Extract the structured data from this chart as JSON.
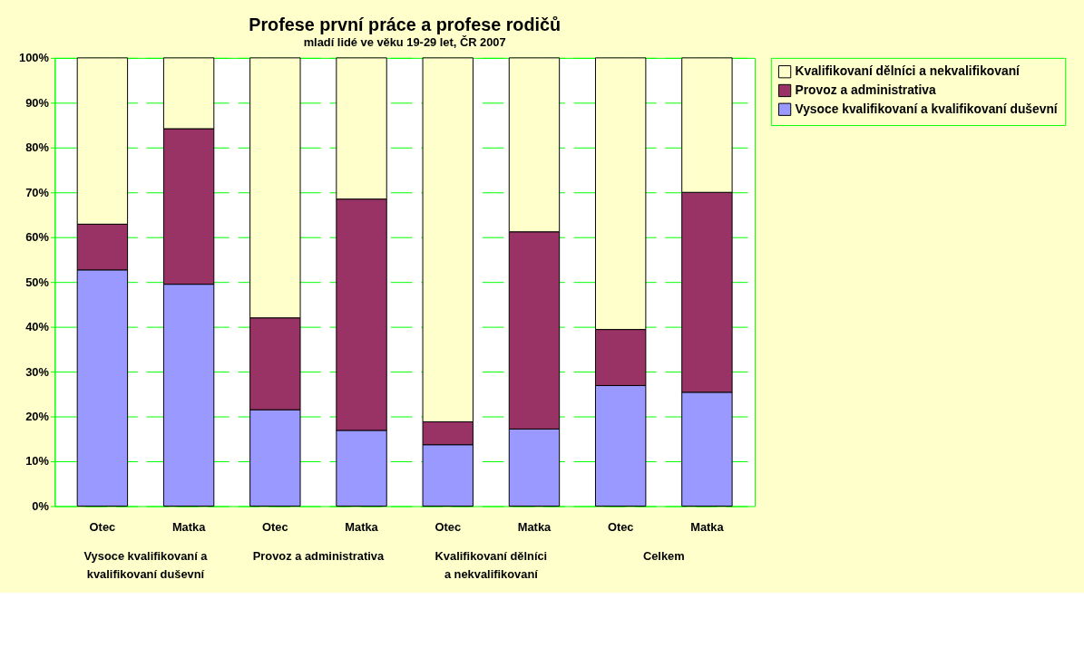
{
  "chart_data": {
    "type": "bar",
    "stacked": true,
    "title": "Profese první práce a profese rodičů",
    "subtitle": "mladí lidé ve věku 19-29 let, ČR 2007",
    "categories": [
      "Otec",
      "Matka",
      "Otec",
      "Matka",
      "Otec",
      "Matka",
      "Otec",
      "Matka"
    ],
    "series": [
      {
        "name": "Vysoce kvalifikovaní a kvalifikovaní duševní",
        "color": "#9999ff",
        "values": [
          52.7,
          49.5,
          21.5,
          16.9,
          13.7,
          17.2,
          26.9,
          25.4
        ]
      },
      {
        "name": "Provoz a administrativa",
        "color": "#993366",
        "values": [
          10.2,
          34.7,
          20.5,
          51.6,
          5.1,
          44.0,
          12.5,
          44.6
        ]
      },
      {
        "name": "Kvalifikovaní dělníci a nekvalifikovaní",
        "color": "#ffffcc",
        "values": [
          37.1,
          15.8,
          58.0,
          31.5,
          81.2,
          38.8,
          60.6,
          30.0
        ]
      }
    ],
    "annotations": [
      "Vysoce kvalifikovaní a kvalifikovaní duševní",
      "Provoz a administrativa",
      "Kvalifikovaní dělníci a nekvalifikovaní",
      "Celkem"
    ],
    "ylim": [
      0,
      100
    ],
    "yticks": [
      {
        "value": 0,
        "label": "0%"
      },
      {
        "value": 10,
        "label": "10%"
      },
      {
        "value": 20,
        "label": "20%"
      },
      {
        "value": 30,
        "label": "30%"
      },
      {
        "value": 40,
        "label": "40%"
      },
      {
        "value": 50,
        "label": "50%"
      },
      {
        "value": 60,
        "label": "60%"
      },
      {
        "value": 70,
        "label": "70%"
      },
      {
        "value": 80,
        "label": "80%"
      },
      {
        "value": 90,
        "label": "90%"
      },
      {
        "value": 100,
        "label": "100%"
      }
    ],
    "grid": "y",
    "legend": "right"
  }
}
